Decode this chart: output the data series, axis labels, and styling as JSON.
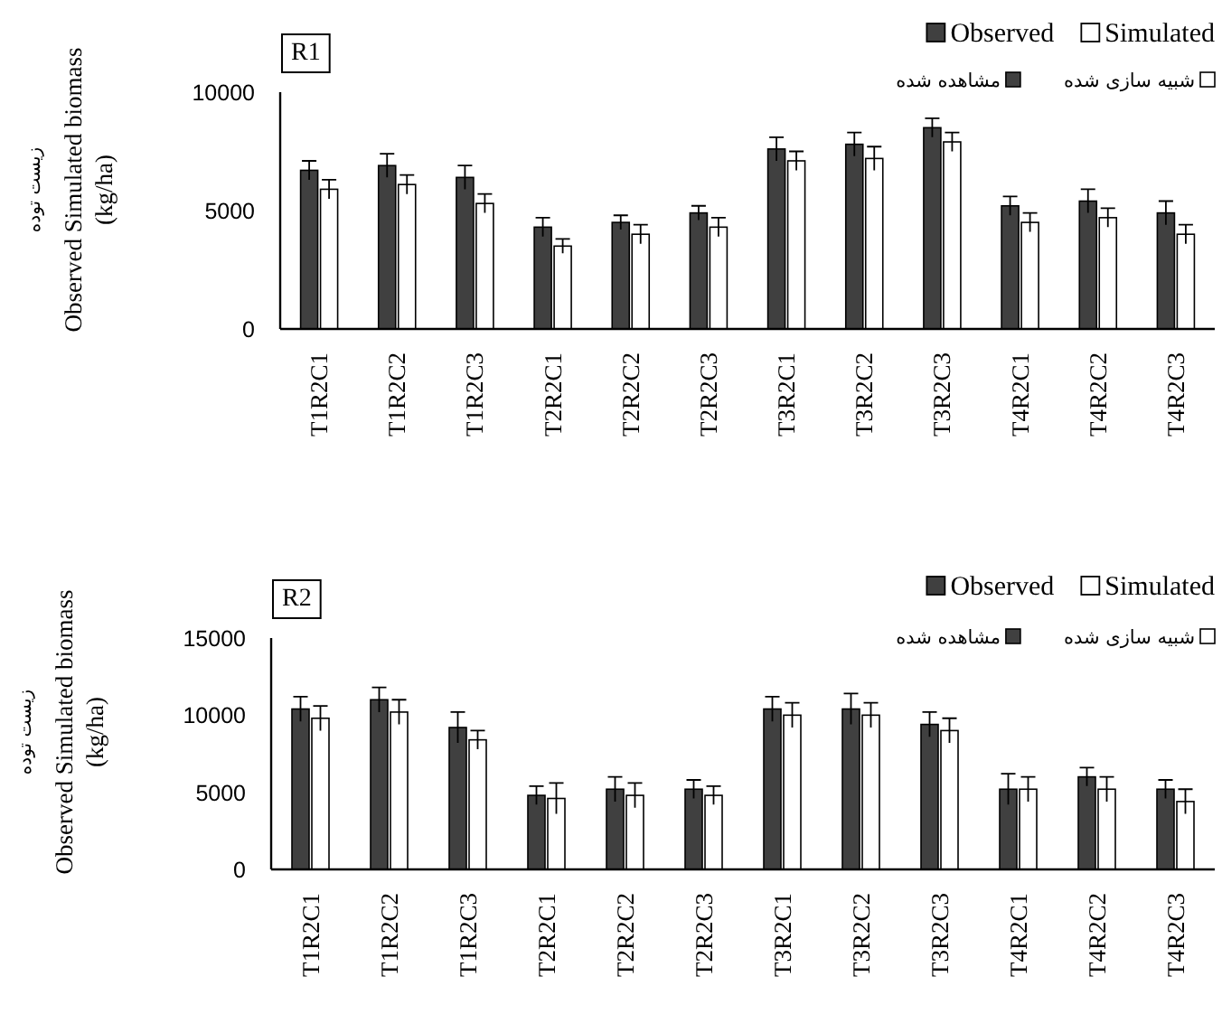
{
  "chart_data": [
    {
      "type": "bar",
      "title": "R1",
      "ylabel": "Observed Simulated biomass (kg/ha)",
      "categories": [
        "T1R2C1",
        "T1R2C2",
        "T1R2C3",
        "T2R2C1",
        "T2R2C2",
        "T2R2C3",
        "T3R2C1",
        "T3R2C2",
        "T3R2C3",
        "T4R2C1",
        "T4R2C2",
        "T4R2C3"
      ],
      "series": [
        {
          "name": "Observed",
          "color": "#404040",
          "values": [
            6700,
            6900,
            6400,
            4300,
            4500,
            4900,
            7600,
            7800,
            8500,
            5200,
            5400,
            4900
          ],
          "errors": [
            400,
            500,
            500,
            400,
            300,
            300,
            500,
            500,
            400,
            400,
            500,
            500
          ]
        },
        {
          "name": "Simulated",
          "color": "#ffffff",
          "values": [
            5900,
            6100,
            5300,
            3500,
            4000,
            4300,
            7100,
            7200,
            7900,
            4500,
            4700,
            4000
          ],
          "errors": [
            400,
            400,
            400,
            300,
            400,
            400,
            400,
            500,
            400,
            400,
            400,
            400
          ]
        }
      ],
      "ylim": [
        0,
        10000
      ],
      "yticks": [
        0,
        5000,
        10000
      ],
      "legend": "top right",
      "annotations": [
        "زیست توده",
        "مشاهده شده",
        "شبیه سازی شده"
      ]
    },
    {
      "type": "bar",
      "title": "R2",
      "ylabel": "Observed Simulated biomass (kg/ha)",
      "categories": [
        "T1R2C1",
        "T1R2C2",
        "T1R2C3",
        "T2R2C1",
        "T2R2C2",
        "T2R2C3",
        "T3R2C1",
        "T3R2C2",
        "T3R2C3",
        "T4R2C1",
        "T4R2C2",
        "T4R2C3"
      ],
      "series": [
        {
          "name": "Observed",
          "color": "#404040",
          "values": [
            10400,
            11000,
            9200,
            4800,
            5200,
            5200,
            10400,
            10400,
            9400,
            5200,
            6000,
            5200
          ],
          "errors": [
            800,
            800,
            1000,
            600,
            800,
            600,
            800,
            1000,
            800,
            1000,
            600,
            600
          ]
        },
        {
          "name": "Simulated",
          "color": "#ffffff",
          "values": [
            9800,
            10200,
            8400,
            4600,
            4800,
            4800,
            10000,
            10000,
            9000,
            5200,
            5200,
            4400
          ],
          "errors": [
            800,
            800,
            600,
            1000,
            800,
            600,
            800,
            800,
            800,
            800,
            800,
            800
          ]
        }
      ],
      "ylim": [
        0,
        15000
      ],
      "yticks": [
        0,
        5000,
        10000,
        15000
      ],
      "legend": "top right",
      "annotations": [
        "زیست توده",
        "مشاهده شده",
        "شبیه سازی شده"
      ]
    }
  ]
}
